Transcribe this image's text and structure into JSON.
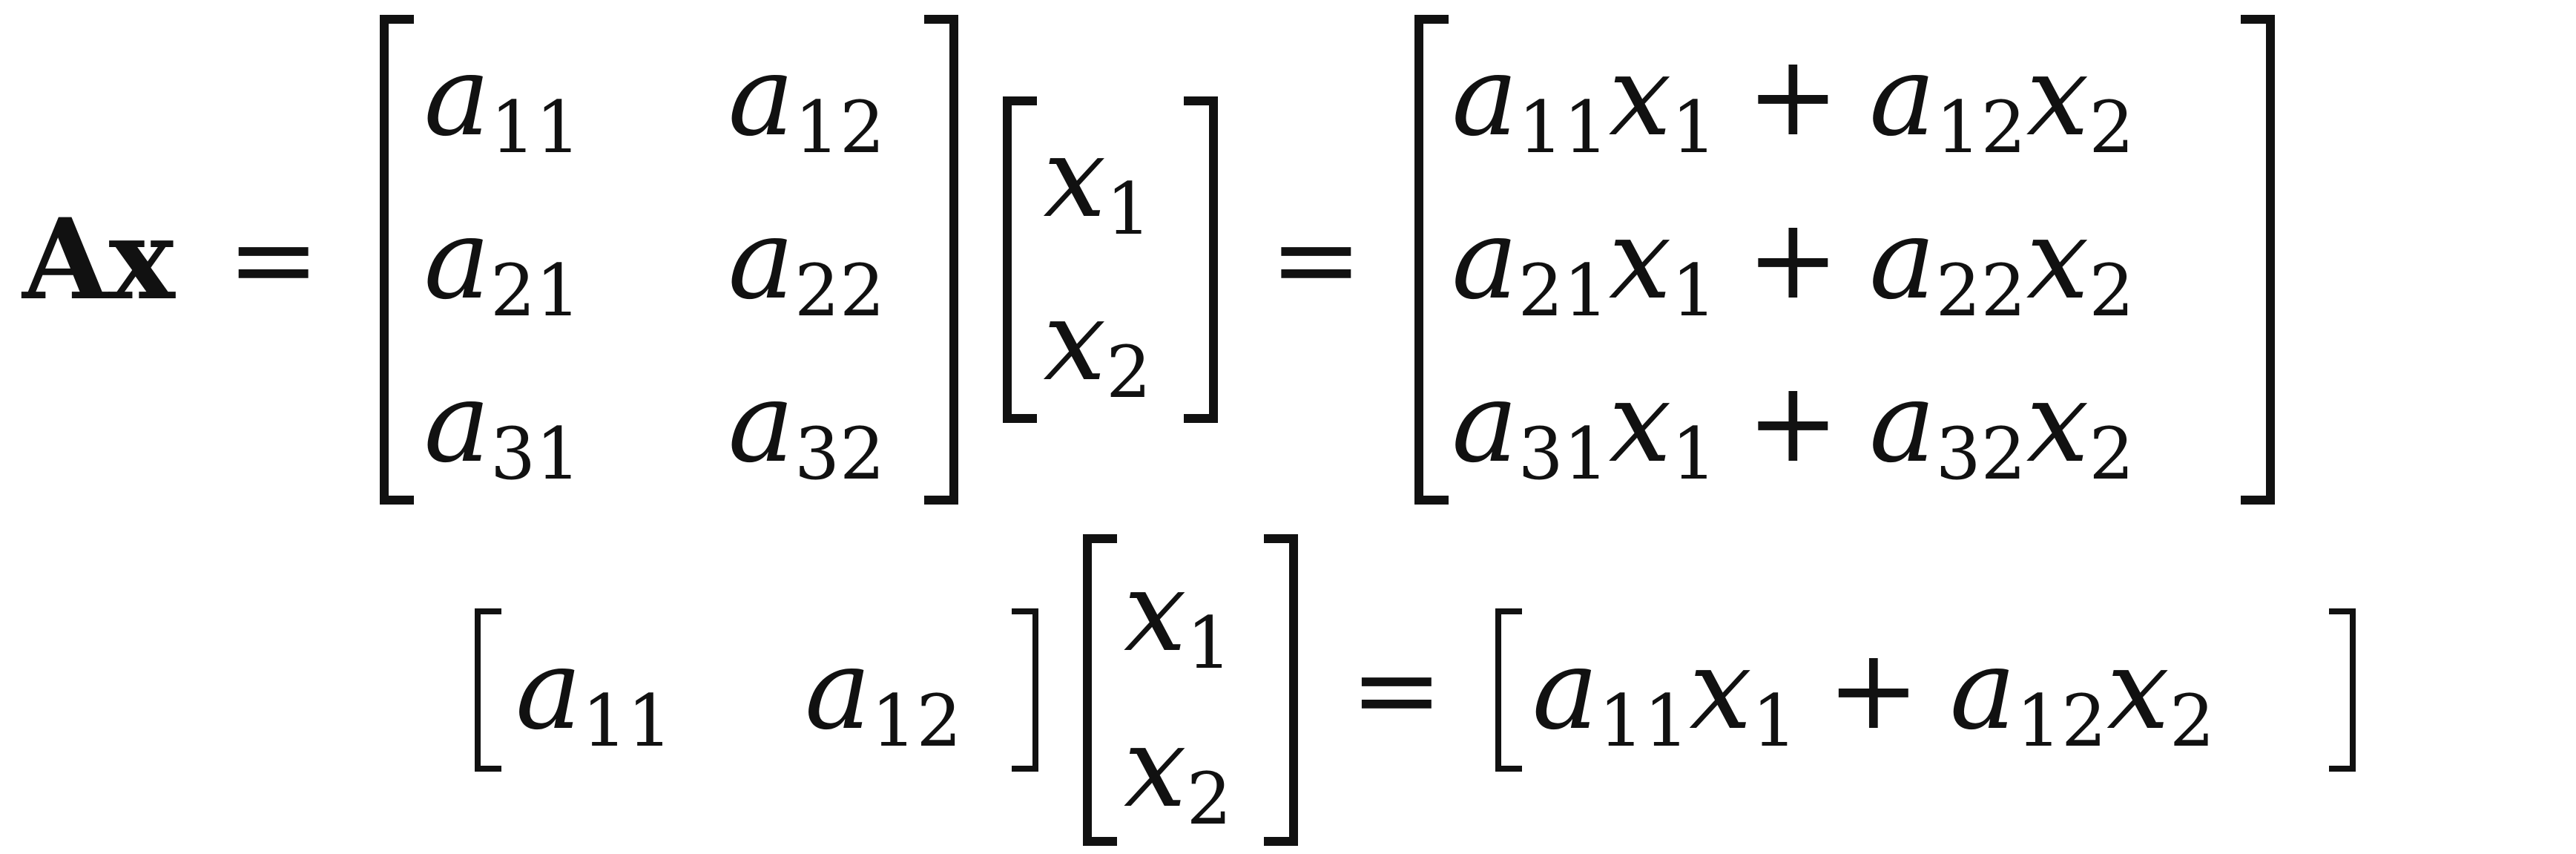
{
  "lhs": "Ax",
  "equals": "=",
  "plus": "+",
  "matrix_A": [
    [
      {
        "b": "a",
        "s": "11"
      },
      {
        "b": "a",
        "s": "12"
      }
    ],
    [
      {
        "b": "a",
        "s": "21"
      },
      {
        "b": "a",
        "s": "22"
      }
    ],
    [
      {
        "b": "a",
        "s": "31"
      },
      {
        "b": "a",
        "s": "32"
      }
    ]
  ],
  "vector_x": [
    {
      "b": "x",
      "s": "1"
    },
    {
      "b": "x",
      "s": "2"
    }
  ],
  "result": [
    [
      {
        "b": "a",
        "s": "11"
      },
      {
        "b": "x",
        "s": "1"
      },
      {
        "b": "a",
        "s": "12"
      },
      {
        "b": "x",
        "s": "2"
      }
    ],
    [
      {
        "b": "a",
        "s": "21"
      },
      {
        "b": "x",
        "s": "1"
      },
      {
        "b": "a",
        "s": "22"
      },
      {
        "b": "x",
        "s": "2"
      }
    ],
    [
      {
        "b": "a",
        "s": "31"
      },
      {
        "b": "x",
        "s": "1"
      },
      {
        "b": "a",
        "s": "32"
      },
      {
        "b": "x",
        "s": "2"
      }
    ]
  ],
  "row_example": {
    "row": [
      {
        "b": "a",
        "s": "11"
      },
      {
        "b": "a",
        "s": "12"
      }
    ],
    "vector": [
      {
        "b": "x",
        "s": "1"
      },
      {
        "b": "x",
        "s": "2"
      }
    ],
    "result": [
      {
        "b": "a",
        "s": "11"
      },
      {
        "b": "x",
        "s": "1"
      },
      {
        "b": "a",
        "s": "12"
      },
      {
        "b": "x",
        "s": "2"
      }
    ]
  }
}
